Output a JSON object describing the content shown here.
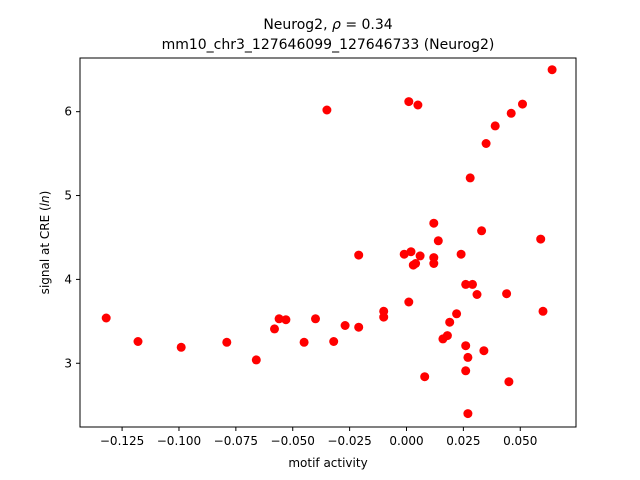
{
  "chart_data": {
    "type": "scatter",
    "title_line1_prefix": "Neurog2, ",
    "title_line1_symbol": "ρ",
    "title_line1_suffix": " = 0.34",
    "title_line2": "mm10_chr3_127646099_127646733 (Neurog2)",
    "xlabel": "motif activity",
    "ylabel_prefix": "signal at CRE (",
    "ylabel_italic": "ln",
    "ylabel_suffix": ")",
    "xlim": [
      -0.1435,
      0.0745
    ],
    "ylim": [
      2.24,
      6.64
    ],
    "x_ticks": [
      -0.125,
      -0.1,
      -0.075,
      -0.05,
      -0.025,
      0.0,
      0.025,
      0.05
    ],
    "x_tick_labels": [
      "−0.125",
      "−0.100",
      "−0.075",
      "−0.050",
      "−0.025",
      "0.000",
      "0.025",
      "0.050"
    ],
    "y_ticks": [
      3,
      4,
      5,
      6
    ],
    "y_tick_labels": [
      "3",
      "4",
      "5",
      "6"
    ],
    "marker_color": "#ff0000",
    "grid": false,
    "legend": "none",
    "points": [
      {
        "x": -0.132,
        "y": 3.54
      },
      {
        "x": -0.118,
        "y": 3.26
      },
      {
        "x": -0.099,
        "y": 3.19
      },
      {
        "x": -0.079,
        "y": 3.25
      },
      {
        "x": -0.066,
        "y": 3.04
      },
      {
        "x": -0.058,
        "y": 3.41
      },
      {
        "x": -0.056,
        "y": 3.53
      },
      {
        "x": -0.053,
        "y": 3.52
      },
      {
        "x": -0.045,
        "y": 3.25
      },
      {
        "x": -0.04,
        "y": 3.53
      },
      {
        "x": -0.035,
        "y": 6.02
      },
      {
        "x": -0.032,
        "y": 3.26
      },
      {
        "x": -0.027,
        "y": 3.45
      },
      {
        "x": -0.021,
        "y": 4.29
      },
      {
        "x": -0.021,
        "y": 3.43
      },
      {
        "x": -0.01,
        "y": 3.62
      },
      {
        "x": -0.01,
        "y": 3.55
      },
      {
        "x": -0.001,
        "y": 4.3
      },
      {
        "x": 0.001,
        "y": 6.12
      },
      {
        "x": 0.001,
        "y": 3.73
      },
      {
        "x": 0.002,
        "y": 4.33
      },
      {
        "x": 0.003,
        "y": 4.17
      },
      {
        "x": 0.004,
        "y": 4.19
      },
      {
        "x": 0.005,
        "y": 6.08
      },
      {
        "x": 0.006,
        "y": 4.28
      },
      {
        "x": 0.008,
        "y": 2.84
      },
      {
        "x": 0.012,
        "y": 4.67
      },
      {
        "x": 0.012,
        "y": 4.26
      },
      {
        "x": 0.012,
        "y": 4.19
      },
      {
        "x": 0.014,
        "y": 4.46
      },
      {
        "x": 0.016,
        "y": 3.29
      },
      {
        "x": 0.018,
        "y": 3.33
      },
      {
        "x": 0.019,
        "y": 3.49
      },
      {
        "x": 0.022,
        "y": 3.59
      },
      {
        "x": 0.024,
        "y": 4.3
      },
      {
        "x": 0.026,
        "y": 3.94
      },
      {
        "x": 0.026,
        "y": 3.21
      },
      {
        "x": 0.026,
        "y": 2.91
      },
      {
        "x": 0.027,
        "y": 3.07
      },
      {
        "x": 0.027,
        "y": 2.4
      },
      {
        "x": 0.028,
        "y": 5.21
      },
      {
        "x": 0.029,
        "y": 3.94
      },
      {
        "x": 0.031,
        "y": 3.82
      },
      {
        "x": 0.033,
        "y": 4.58
      },
      {
        "x": 0.034,
        "y": 3.15
      },
      {
        "x": 0.035,
        "y": 5.62
      },
      {
        "x": 0.039,
        "y": 5.83
      },
      {
        "x": 0.044,
        "y": 3.83
      },
      {
        "x": 0.045,
        "y": 2.78
      },
      {
        "x": 0.046,
        "y": 5.98
      },
      {
        "x": 0.051,
        "y": 6.09
      },
      {
        "x": 0.059,
        "y": 4.48
      },
      {
        "x": 0.06,
        "y": 3.62
      },
      {
        "x": 0.064,
        "y": 6.5
      }
    ]
  }
}
